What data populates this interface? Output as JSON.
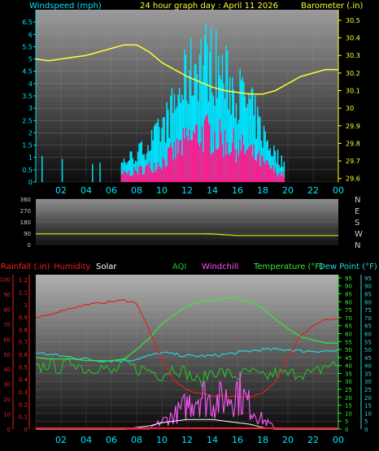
{
  "header": {
    "left_label": "Windspeed (mph)",
    "center_label": "24 hour graph day : April 11 2026",
    "right_label": "Barometer (.in)"
  },
  "legend": {
    "rainfall": "Rainfall (.in)",
    "humidity": "Humidity",
    "solar": "Solar",
    "aqi": "AQI",
    "windchill": "Windchill",
    "temperature": "Temperature (°F)",
    "dewpoint": "Dew Point (°F)"
  },
  "colors": {
    "wind_cyan": "#00e5ff",
    "gust_pink": "#ff1a8c",
    "baro_yellow": "#ffff33",
    "dir_yellow": "#e6e600",
    "rain_red": "#ff2020",
    "humidity_red": "#e02020",
    "temp_green": "#33ee33",
    "dew_cyan": "#22dddd",
    "aqi_green": "#22cc22",
    "windchill_magenta": "#ff55ff",
    "solar_white": "#ffffff"
  },
  "chart_data": [
    {
      "type": "bar",
      "title": "24 hour graph day : April 11 2026",
      "ylabel": "Windspeed (mph)",
      "y2label": "Barometer (.in)",
      "xticks": [
        "02",
        "04",
        "06",
        "08",
        "10",
        "12",
        "14",
        "16",
        "18",
        "20",
        "22",
        "00"
      ],
      "yticks": [
        "0",
        "0.5",
        "1",
        "1.5",
        "2",
        "2.5",
        "3",
        "3.5",
        "4",
        "4.5",
        "5",
        "5.5",
        "6",
        "6.5"
      ],
      "y2ticks": [
        "29.6",
        "29.7",
        "29.8",
        "29.9",
        "30",
        "30.1",
        "30.2",
        "30.3",
        "30.4",
        "30.5"
      ],
      "ylim": [
        0,
        7
      ],
      "y2lim": [
        29.58,
        30.56
      ],
      "series": [
        {
          "name": "Windspeed (mph)",
          "values_hourly": [
            0.4,
            0.3,
            0.4,
            0.5,
            0.3,
            0.2,
            0.2,
            0.6,
            0.8,
            1.1,
            1.5,
            2.2,
            3.0,
            3.6,
            3.5,
            3.0,
            2.6,
            2.2,
            1.4,
            0.8,
            0.4,
            0.2,
            0.1,
            0.1
          ]
        },
        {
          "name": "Barometer (.in)",
          "values_hourly": [
            30.28,
            30.27,
            30.28,
            30.29,
            30.3,
            30.32,
            30.34,
            30.36,
            30.36,
            30.32,
            30.26,
            30.22,
            30.18,
            30.15,
            30.12,
            30.1,
            30.09,
            30.08,
            30.08,
            30.1,
            30.14,
            30.18,
            30.2,
            30.22
          ]
        }
      ]
    },
    {
      "type": "line",
      "yticks": [
        "0",
        "90",
        "180",
        "270",
        "360"
      ],
      "y2ticks": [
        "N",
        "W",
        "S",
        "E",
        "N"
      ],
      "ylim": [
        0,
        360
      ],
      "series": [
        {
          "name": "Wind Direction",
          "values_hourly": [
            85,
            85,
            85,
            85,
            85,
            85,
            85,
            85,
            85,
            85,
            85,
            85,
            85,
            85,
            84,
            78,
            72,
            72,
            72,
            72,
            72,
            72,
            72,
            72
          ]
        }
      ]
    },
    {
      "type": "line",
      "xticks": [
        "02",
        "04",
        "06",
        "08",
        "10",
        "12",
        "14",
        "16",
        "18",
        "20",
        "22",
        "00"
      ],
      "rain_ticks": [
        "0",
        "0.1",
        "0.2",
        "0.3",
        "0.4",
        "0.5",
        "0.6",
        "0.7",
        "0.8",
        "0.9",
        "1",
        "1.1",
        "1.2"
      ],
      "humidity_ticks": [
        "0",
        "10",
        "20",
        "30",
        "40",
        "50",
        "60",
        "70",
        "80",
        "90",
        "100"
      ],
      "temp_ticks": [
        "0",
        "5",
        "10",
        "15",
        "20",
        "25",
        "30",
        "35",
        "40",
        "45",
        "50",
        "55",
        "60",
        "65",
        "70",
        "75",
        "80",
        "85",
        "90",
        "95"
      ],
      "series": [
        {
          "name": "Humidity",
          "values_hourly": [
            74,
            76,
            79,
            81,
            83,
            84,
            85,
            86,
            84,
            66,
            46,
            32,
            26,
            24,
            22,
            22,
            22,
            21,
            24,
            32,
            48,
            62,
            69,
            73
          ]
        },
        {
          "name": "Temperature (°F)",
          "values_hourly": [
            45,
            44,
            44,
            44,
            43,
            43,
            43,
            44,
            50,
            57,
            66,
            72,
            77,
            80,
            81,
            82,
            82,
            80,
            76,
            69,
            63,
            58,
            56,
            54
          ]
        },
        {
          "name": "Dew Point (°F)",
          "values_hourly": [
            48,
            47,
            46,
            45,
            44,
            43,
            43,
            43,
            44,
            46,
            48,
            47,
            46,
            46,
            46,
            47,
            48,
            49,
            50,
            50,
            50,
            49,
            49,
            49
          ]
        },
        {
          "name": "AQI",
          "values_hourly": [
            37,
            41,
            38,
            43,
            37,
            40,
            35,
            41,
            38,
            37,
            34,
            39,
            35,
            29,
            37,
            35,
            33,
            36,
            32,
            35,
            34,
            36,
            34,
            40
          ]
        },
        {
          "name": "Windchill",
          "values_hourly": [
            0,
            0,
            0,
            0,
            0,
            0,
            0,
            0,
            0,
            0,
            5,
            9,
            16,
            24,
            18,
            20,
            26,
            15,
            6,
            1,
            0,
            0,
            0,
            0
          ]
        },
        {
          "name": "Solar",
          "values_hourly": [
            0,
            0,
            0,
            0,
            0,
            0,
            0,
            0,
            1,
            2,
            4,
            5,
            6,
            6,
            6,
            5,
            4,
            3,
            1,
            0,
            0,
            0,
            0,
            0
          ]
        },
        {
          "name": "Rainfall (.in)",
          "values_hourly": [
            0,
            0,
            0,
            0,
            0,
            0,
            0,
            0,
            0,
            0,
            0,
            0,
            0,
            0,
            0,
            0,
            0,
            0,
            0,
            0,
            0,
            0,
            0,
            0
          ]
        }
      ]
    }
  ]
}
